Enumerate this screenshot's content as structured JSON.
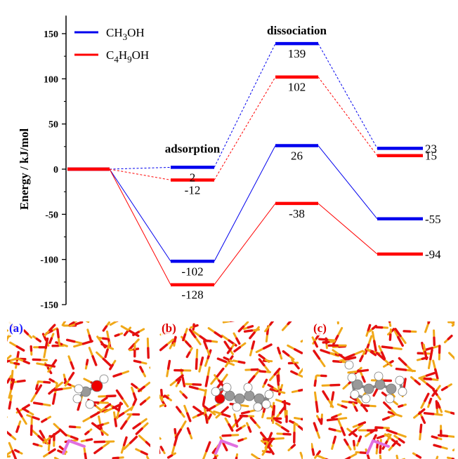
{
  "chart_data": {
    "type": "line",
    "ylabel": "Energy / kJ/mol",
    "ylim": [
      -150,
      170
    ],
    "yticks": [
      -150,
      -100,
      -50,
      0,
      50,
      100,
      150
    ],
    "states": [
      "initial",
      "intermediate",
      "transition",
      "final"
    ],
    "series": [
      {
        "name_parts": [
          "CH",
          "3",
          "OH"
        ],
        "color": "#0000ee",
        "pathways": [
          {
            "kind": "dashed",
            "values": [
              0,
              2,
              139,
              23
            ]
          },
          {
            "kind": "solid",
            "values": [
              0,
              -102,
              26,
              -55
            ]
          }
        ]
      },
      {
        "name_parts": [
          "C",
          "4",
          "H",
          "9",
          "OH"
        ],
        "color": "#ff0000",
        "pathways": [
          {
            "kind": "dashed",
            "values": [
              0,
              -12,
              102,
              15
            ]
          },
          {
            "kind": "solid",
            "values": [
              0,
              -128,
              -38,
              -94
            ]
          }
        ]
      }
    ],
    "data_labels": [
      {
        "text": "2",
        "state": 1,
        "value": 2,
        "anchor": "below"
      },
      {
        "text": "-12",
        "state": 1,
        "value": -12,
        "anchor": "below"
      },
      {
        "text": "-102",
        "state": 1,
        "value": -102,
        "anchor": "below"
      },
      {
        "text": "-128",
        "state": 1,
        "value": -128,
        "anchor": "below"
      },
      {
        "text": "139",
        "state": 2,
        "value": 139,
        "anchor": "below"
      },
      {
        "text": "102",
        "state": 2,
        "value": 102,
        "anchor": "below"
      },
      {
        "text": "26",
        "state": 2,
        "value": 26,
        "anchor": "below"
      },
      {
        "text": "-38",
        "state": 2,
        "value": -38,
        "anchor": "below"
      },
      {
        "text": "23",
        "state": 3,
        "value": 23,
        "anchor": "right"
      },
      {
        "text": "15",
        "state": 3,
        "value": 15,
        "anchor": "right"
      },
      {
        "text": "-55",
        "state": 3,
        "value": -55,
        "anchor": "right"
      },
      {
        "text": "-94",
        "state": 3,
        "value": -94,
        "anchor": "right"
      }
    ],
    "annotations": [
      {
        "text": "adsorption",
        "state": 1,
        "value": 22
      },
      {
        "text": "dissociation",
        "state": 2,
        "value": 153
      }
    ],
    "legend": "top-left",
    "grid": false
  },
  "panels": [
    {
      "label": "(a)",
      "label_color": "#1a1aff"
    },
    {
      "label": "(b)",
      "label_color": "#dd0000"
    },
    {
      "label": "(c)",
      "label_color": "#dd0000"
    }
  ]
}
